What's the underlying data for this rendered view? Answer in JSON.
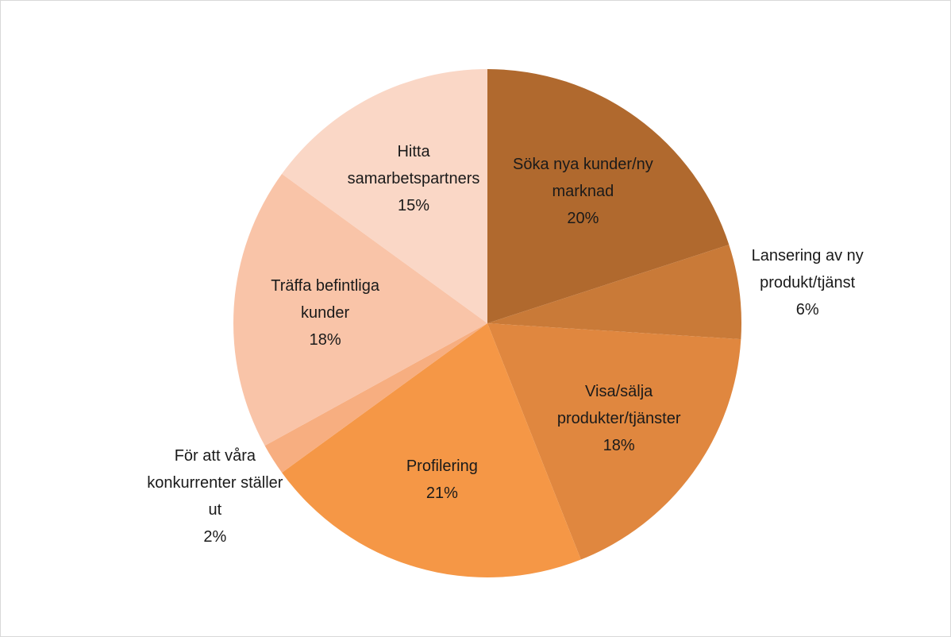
{
  "chart_data": {
    "type": "pie",
    "categories": [
      "Söka nya kunder/ny marknad",
      "Lansering av ny produkt/tjänst",
      "Visa/sälja produkter/tjänster",
      "Profilering",
      "För att våra konkurrenter ställer ut",
      "Träffa befintliga kunder",
      "Hitta samarbetspartners"
    ],
    "values": [
      20,
      6,
      18,
      21,
      2,
      18,
      15
    ],
    "value_labels": [
      "20%",
      "6%",
      "18%",
      "21%",
      "2%",
      "18%",
      "15%"
    ],
    "colors": [
      "#b0692e",
      "#c97a38",
      "#e0873f",
      "#f59746",
      "#f7ae80",
      "#f9c4a8",
      "#fad7c6"
    ]
  }
}
